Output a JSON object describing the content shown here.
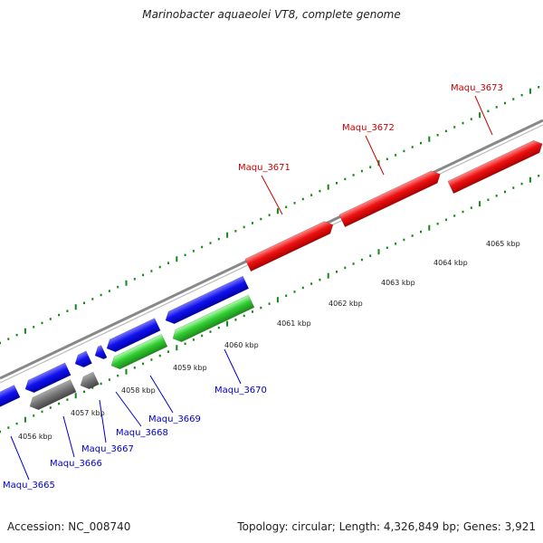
{
  "title": "Marinobacter aquaeolei VT8, complete genome",
  "footer": {
    "accession": "Accession: NC_008740",
    "topology": "Topology: circular; Length: 4,326,849 bp; Genes: 3,921"
  },
  "colors": {
    "forward_gene": "#e00000",
    "reverse_gene_blue": "#0000dd",
    "reverse_gene_gray": "#666666",
    "reverse_gene_green": "#33cc33",
    "backbone": "#888888",
    "tick": "#118811",
    "label_forward": "#cc0000",
    "label_reverse": "#0000cc"
  },
  "scale_labels": [
    "4056 kbp",
    "4057 kbp",
    "4058 kbp",
    "4059 kbp",
    "4060 kbp",
    "4061 kbp",
    "4062 kbp",
    "4063 kbp",
    "4064 kbp",
    "4065 kbp"
  ],
  "genes": [
    {
      "name": "Maqu_3665",
      "strand": "reverse",
      "color": "blue"
    },
    {
      "name": "Maqu_3666",
      "strand": "reverse",
      "color": "gray"
    },
    {
      "name": "Maqu_3667",
      "strand": "reverse",
      "color": "gray"
    },
    {
      "name": "Maqu_3668",
      "strand": "reverse",
      "color": "blue"
    },
    {
      "name": "Maqu_3669",
      "strand": "reverse",
      "color": "blue"
    },
    {
      "name": "Maqu_3670",
      "strand": "reverse",
      "color": "green"
    },
    {
      "name": "Maqu_3671",
      "strand": "forward",
      "color": "red"
    },
    {
      "name": "Maqu_3672",
      "strand": "forward",
      "color": "red"
    },
    {
      "name": "Maqu_3673",
      "strand": "forward",
      "color": "red"
    }
  ]
}
